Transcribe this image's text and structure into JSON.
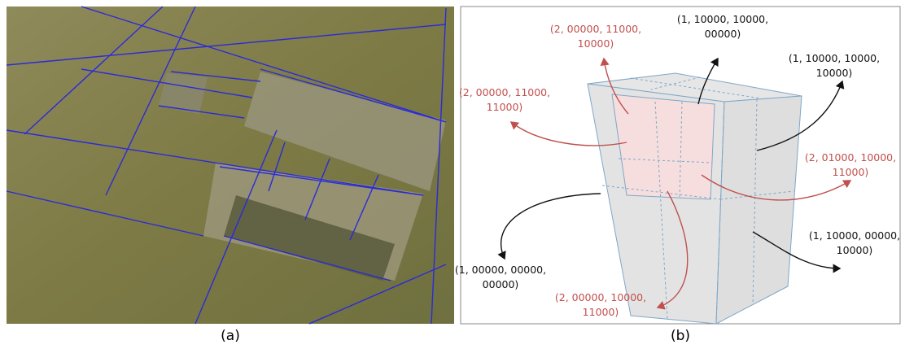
{
  "panels": [
    {
      "label": "(a)"
    },
    {
      "label": "(b)",
      "annotations": [
        {
          "lines": [
            "(2, 00000, 11000,",
            "10000)"
          ],
          "color": "#c0504d"
        },
        {
          "lines": [
            "(1, 10000, 10000,",
            "00000)"
          ],
          "color": "#111111"
        },
        {
          "lines": [
            "(1, 10000, 10000,",
            "10000)"
          ],
          "color": "#111111"
        },
        {
          "lines": [
            "(2, 00000, 11000,",
            "11000)"
          ],
          "color": "#c0504d"
        },
        {
          "lines": [
            "(2, 01000, 10000,",
            "11000)"
          ],
          "color": "#c0504d"
        },
        {
          "lines": [
            "(1, 10000, 00000,",
            "10000)"
          ],
          "color": "#111111"
        },
        {
          "lines": [
            "(1, 00000, 00000,",
            "00000)"
          ],
          "color": "#111111"
        },
        {
          "lines": [
            "(2, 00000, 10000,",
            "11000)"
          ],
          "color": "#c0504d"
        }
      ]
    }
  ]
}
